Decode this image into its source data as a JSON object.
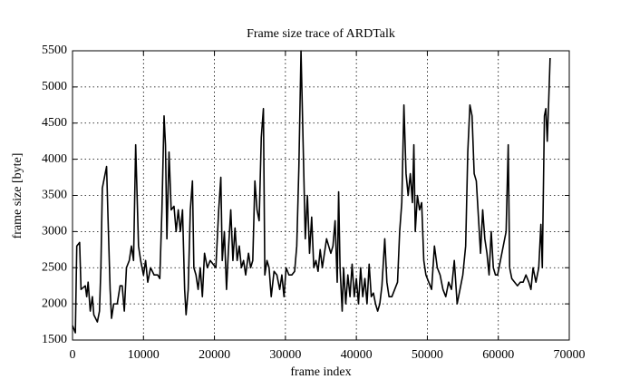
{
  "chart_data": {
    "type": "line",
    "title": "Frame size trace of ARDTalk",
    "xlabel": "frame index",
    "ylabel": "frame size [byte]",
    "color": "#000000",
    "grid": true,
    "xlim": [
      0,
      70000
    ],
    "xticks": [
      0,
      10000,
      20000,
      30000,
      40000,
      50000,
      60000,
      70000
    ],
    "ylim": [
      1500,
      5500
    ],
    "yticks": [
      1500,
      2000,
      2500,
      3000,
      3500,
      4000,
      4500,
      5000,
      5500
    ],
    "x": [
      0,
      400,
      600,
      1000,
      1200,
      1800,
      2000,
      2200,
      2500,
      2800,
      3000,
      3500,
      3800,
      4000,
      4200,
      4500,
      4800,
      5000,
      5300,
      5500,
      5800,
      6300,
      6700,
      7000,
      7300,
      7600,
      8000,
      8300,
      8600,
      8900,
      9100,
      9300,
      9600,
      10000,
      10300,
      10600,
      11000,
      11500,
      12000,
      12300,
      12600,
      12900,
      13100,
      13300,
      13600,
      13900,
      14300,
      14600,
      14900,
      15200,
      15500,
      15800,
      16000,
      16300,
      16600,
      16900,
      17100,
      17400,
      17700,
      18000,
      18300,
      18600,
      19000,
      19400,
      19800,
      20200,
      20600,
      20900,
      21100,
      21400,
      21700,
      22000,
      22300,
      22600,
      22900,
      23200,
      23500,
      23800,
      24100,
      24400,
      24800,
      25100,
      25400,
      25700,
      26000,
      26300,
      26600,
      26900,
      27100,
      27400,
      27700,
      28000,
      28400,
      28800,
      29200,
      29500,
      29800,
      30100,
      30500,
      30900,
      31300,
      31600,
      31900,
      32200,
      32500,
      32800,
      33100,
      33400,
      33700,
      34000,
      34300,
      34600,
      34900,
      35200,
      35500,
      35800,
      36100,
      36400,
      36700,
      37000,
      37300,
      37500,
      37700,
      38000,
      38200,
      38500,
      38800,
      39100,
      39400,
      39700,
      40000,
      40300,
      40600,
      40900,
      41200,
      41500,
      41800,
      42100,
      42400,
      42700,
      43000,
      43300,
      43600,
      44000,
      44300,
      44600,
      45000,
      45400,
      45800,
      46100,
      46400,
      46700,
      47000,
      47300,
      47600,
      47900,
      48100,
      48300,
      48600,
      48900,
      49200,
      49500,
      49800,
      50200,
      50600,
      51000,
      51400,
      51800,
      52200,
      52600,
      53000,
      53400,
      53800,
      54200,
      54600,
      55000,
      55400,
      55700,
      56000,
      56300,
      56600,
      56900,
      57200,
      57500,
      57800,
      58100,
      58400,
      58700,
      59000,
      59300,
      59600,
      59900,
      61100,
      61400,
      61600,
      61900,
      62300,
      62700,
      63100,
      63500,
      63900,
      64300,
      64600,
      64900,
      65300,
      65700,
      66000,
      66200,
      66500,
      66700,
      66900,
      67100,
      67300
    ],
    "values": [
      1700,
      1600,
      2800,
      2850,
      2200,
      2250,
      2100,
      2300,
      1900,
      2100,
      1850,
      1750,
      1900,
      2500,
      3600,
      3750,
      3900,
      3200,
      2200,
      1800,
      2000,
      2000,
      2250,
      2250,
      1900,
      2500,
      2600,
      2800,
      2600,
      4200,
      3500,
      2800,
      2600,
      2400,
      2600,
      2300,
      2500,
      2400,
      2400,
      2350,
      3300,
      4600,
      4200,
      2900,
      4100,
      3300,
      3350,
      3000,
      3300,
      3000,
      3300,
      2200,
      1850,
      2200,
      3300,
      3700,
      2500,
      2400,
      2200,
      2500,
      2100,
      2700,
      2500,
      2600,
      2550,
      2500,
      3300,
      3750,
      2600,
      3000,
      2200,
      2800,
      3300,
      2600,
      3050,
      2600,
      2800,
      2500,
      2600,
      2400,
      2700,
      2500,
      2600,
      3700,
      3300,
      3150,
      4300,
      4700,
      2400,
      2600,
      2500,
      2100,
      2450,
      2400,
      2200,
      2400,
      2100,
      2500,
      2400,
      2400,
      2450,
      2800,
      3900,
      5500,
      4200,
      2900,
      3500,
      2700,
      3200,
      2500,
      2600,
      2450,
      2750,
      2500,
      2700,
      2900,
      2800,
      2700,
      2800,
      3150,
      2300,
      3550,
      2500,
      1900,
      2500,
      2000,
      2400,
      2100,
      2550,
      2100,
      2350,
      2000,
      2500,
      2100,
      2350,
      2000,
      2550,
      2100,
      2150,
      2000,
      1900,
      2000,
      2250,
      2900,
      2300,
      2100,
      2100,
      2200,
      2300,
      3000,
      3400,
      4750,
      3800,
      3500,
      3800,
      3400,
      4200,
      3000,
      3500,
      3300,
      3400,
      2600,
      2400,
      2300,
      2200,
      2800,
      2500,
      2400,
      2200,
      2100,
      2300,
      2200,
      2600,
      2000,
      2200,
      2400,
      2800,
      4100,
      4750,
      4600,
      3800,
      3700,
      3200,
      2700,
      3300,
      2900,
      2700,
      2400,
      3000,
      2500,
      2400,
      2400,
      3000,
      4200,
      2500,
      2350,
      2300,
      2250,
      2300,
      2300,
      2400,
      2300,
      2200,
      2500,
      2300,
      2500,
      3100,
      2500,
      4600,
      4700,
      4250,
      4800,
      5400
    ]
  }
}
